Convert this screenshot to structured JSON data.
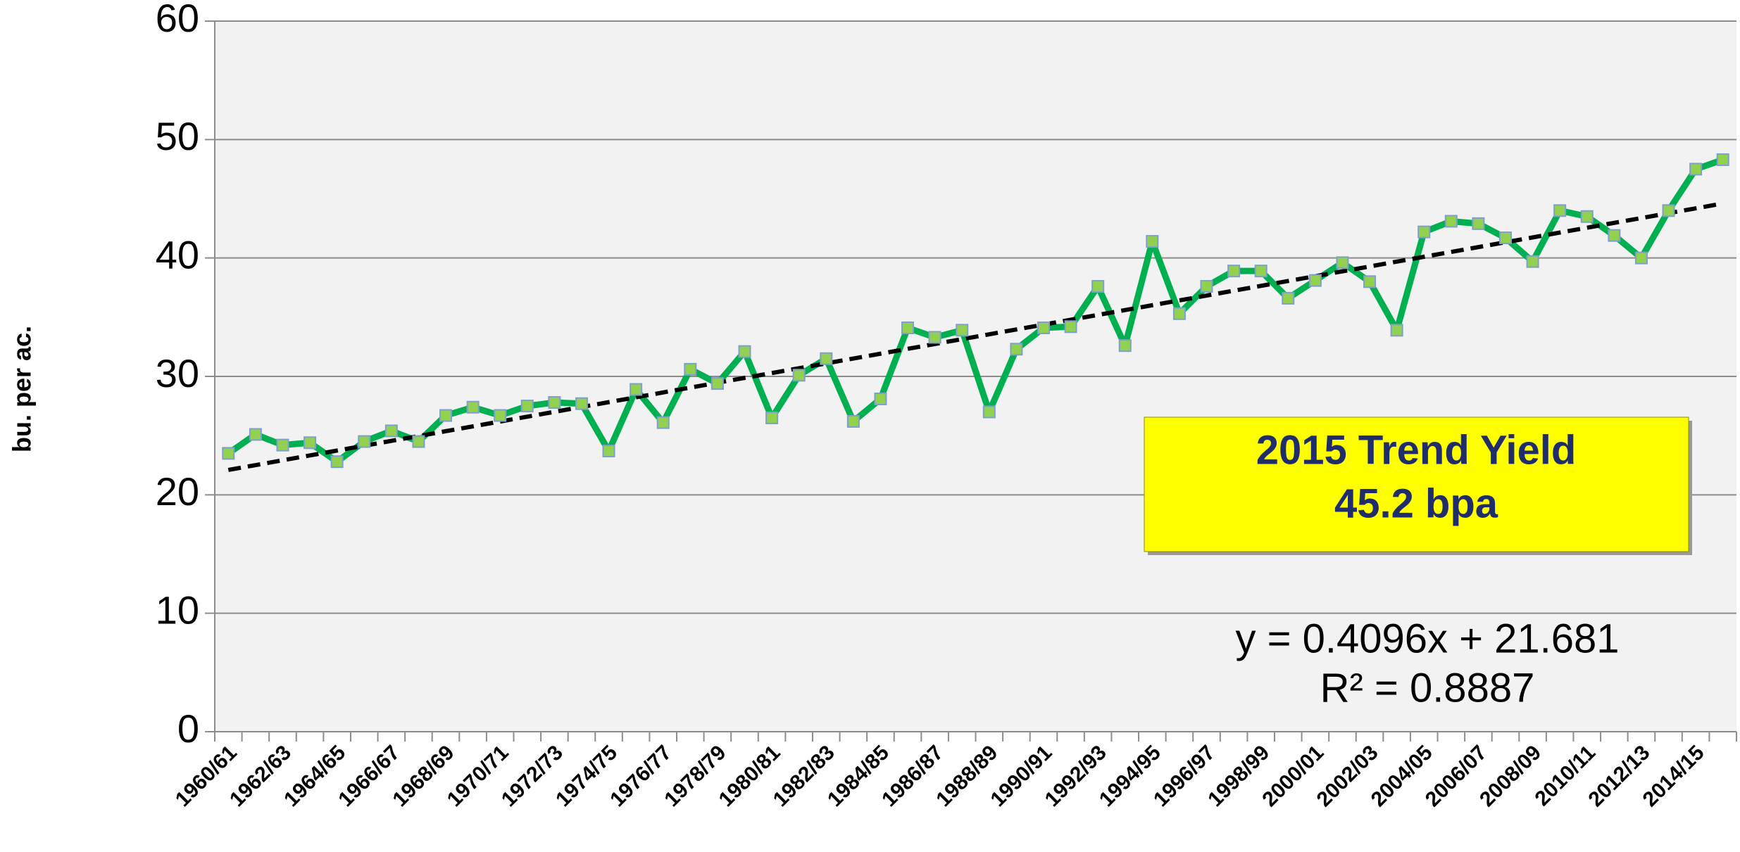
{
  "chart_data": {
    "type": "line",
    "y_label": "bu. per ac.",
    "categories": [
      "1960/61",
      null,
      "1962/63",
      null,
      "1964/65",
      null,
      "1966/67",
      null,
      "1968/69",
      null,
      "1970/71",
      null,
      "1972/73",
      null,
      "1974/75",
      null,
      "1976/77",
      null,
      "1978/79",
      null,
      "1980/81",
      null,
      "1982/83",
      null,
      "1984/85",
      null,
      "1986/87",
      null,
      "1988/89",
      null,
      "1990/91",
      null,
      "1992/93",
      null,
      "1994/95",
      null,
      "1996/97",
      null,
      "1998/99",
      null,
      "2000/01",
      null,
      "2002/03",
      null,
      "2004/05",
      null,
      "2006/07",
      null,
      "2008/09",
      null,
      "2010/11",
      null,
      "2012/13",
      null,
      "2014/15",
      null
    ],
    "series": [
      {
        "color": "#00b050",
        "marker_color": "#92d050",
        "values": [
          23.5,
          25.1,
          24.2,
          24.4,
          22.8,
          24.5,
          25.4,
          24.5,
          26.7,
          27.4,
          26.7,
          27.5,
          27.8,
          27.7,
          23.7,
          28.9,
          26.1,
          30.6,
          29.4,
          32.1,
          26.5,
          30.1,
          31.5,
          26.2,
          28.1,
          34.1,
          33.3,
          33.9,
          27.0,
          32.3,
          34.1,
          34.2,
          37.6,
          32.6,
          41.4,
          35.3,
          37.6,
          38.9,
          38.9,
          36.6,
          38.1,
          39.6,
          38.0,
          33.9,
          42.2,
          43.1,
          42.9,
          41.7,
          39.7,
          44.0,
          43.5,
          41.9,
          40.0,
          44.0,
          47.5,
          48.3
        ]
      }
    ],
    "trendline": {
      "start": 22.1,
      "end": 44.6,
      "color": "#000000"
    },
    "ylim": [
      0,
      60
    ],
    "yticks": [
      0,
      10,
      20,
      30,
      40,
      50,
      60
    ],
    "grid": true,
    "annotation_box": [
      "2015 Trend Yield",
      "45.2 bpa"
    ],
    "equation": [
      "y = 0.4096x + 21.681",
      "R² = 0.8887"
    ]
  }
}
